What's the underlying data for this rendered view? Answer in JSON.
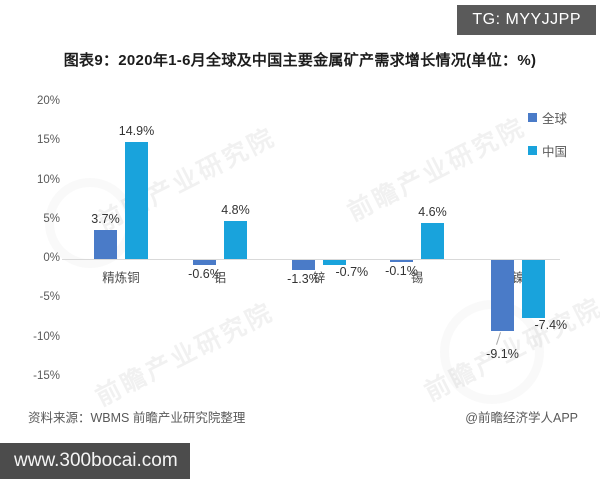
{
  "badge": {
    "text": "TG: MYYJJPP"
  },
  "watermark": {
    "text": "前瞻产业研究院"
  },
  "chart_data": {
    "type": "bar",
    "title": "图表9：2020年1-6月全球及中国主要金属矿产需求增长情况(单位：%)",
    "categories": [
      "精炼铜",
      "铝",
      "锌",
      "锡",
      "镍"
    ],
    "series": [
      {
        "name": "全球",
        "color": "#4a7bc8",
        "values": [
          3.7,
          -0.6,
          -1.3,
          -0.1,
          -9.1
        ]
      },
      {
        "name": "中国",
        "color": "#19a3dc",
        "values": [
          14.9,
          4.8,
          -0.7,
          4.6,
          -7.4
        ]
      }
    ],
    "labels": [
      [
        "3.7%",
        "-0.6%",
        "-1.3%",
        "-0.1%",
        "-9.1%"
      ],
      [
        "14.9%",
        "4.8%",
        "-0.7%",
        "4.6%",
        "-7.4%"
      ]
    ],
    "xlabel": "",
    "ylabel": "",
    "ylim": [
      -15,
      20
    ],
    "yticks": [
      "20%",
      "15%",
      "10%",
      "5%",
      "0%",
      "-5%",
      "-10%",
      "-15%"
    ],
    "grid": false,
    "legend_position": "right-top"
  },
  "footer": {
    "source": "资料来源：WBMS 前瞻产业研究院整理",
    "credit": "@前瞻经济学人APP",
    "site": "www.300bocai.com"
  }
}
